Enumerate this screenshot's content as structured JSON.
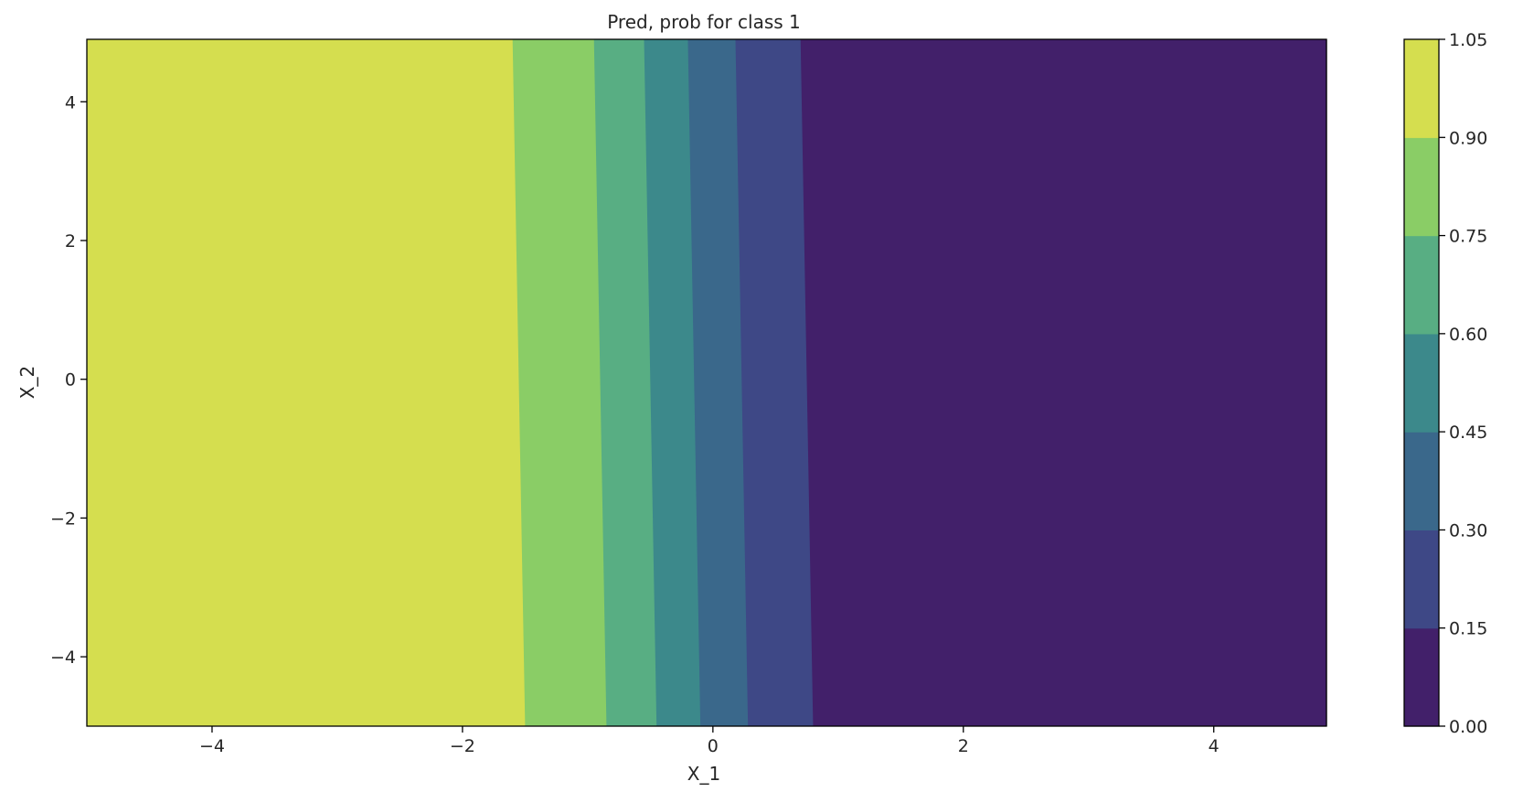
{
  "chart_data": {
    "type": "filled_contour",
    "title": "Pred, prob for class 1",
    "xlabel": "X_1",
    "ylabel": "X_2",
    "xlim": [
      -5,
      4.9
    ],
    "ylim": [
      -5,
      4.9
    ],
    "xticks": [
      {
        "value": -4,
        "label": "−4"
      },
      {
        "value": -2,
        "label": "−2"
      },
      {
        "value": 0,
        "label": "0"
      },
      {
        "value": 2,
        "label": "2"
      },
      {
        "value": 4,
        "label": "4"
      }
    ],
    "yticks": [
      {
        "value": 4,
        "label": "4"
      },
      {
        "value": 2,
        "label": "2"
      },
      {
        "value": 0,
        "label": "0"
      },
      {
        "value": -2,
        "label": "−2"
      },
      {
        "value": -4,
        "label": "−4"
      }
    ],
    "levels": [
      0.0,
      0.15,
      0.3,
      0.45,
      0.6,
      0.75,
      0.9,
      1.05
    ],
    "colorbar_ticks": [
      "0.00",
      "0.15",
      "0.30",
      "0.45",
      "0.60",
      "0.75",
      "0.90",
      "1.05"
    ],
    "colors": [
      "#440154",
      "#3e4a89",
      "#31688e",
      "#26828e",
      "#35b779",
      "#6ece58",
      "#b5de2b",
      "#fde725"
    ],
    "band_colors": [
      "#42206a",
      "#3e4886",
      "#3a688b",
      "#3c898b",
      "#58ae83",
      "#8acd66",
      "#d5de4f"
    ],
    "boundaries": [
      {
        "level": 0.9,
        "x_at_top": -1.6,
        "x_at_bottom": -1.5
      },
      {
        "level": 0.75,
        "x_at_top": -0.95,
        "x_at_bottom": -0.85
      },
      {
        "level": 0.6,
        "x_at_top": -0.55,
        "x_at_bottom": -0.45
      },
      {
        "level": 0.45,
        "x_at_top": -0.2,
        "x_at_bottom": -0.1
      },
      {
        "level": 0.3,
        "x_at_top": 0.18,
        "x_at_bottom": 0.28
      },
      {
        "level": 0.15,
        "x_at_top": 0.7,
        "x_at_bottom": 0.8
      }
    ]
  }
}
